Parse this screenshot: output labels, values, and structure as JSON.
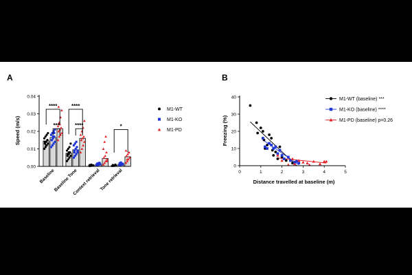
{
  "colors": {
    "wt": "#000000",
    "ko": "#1f37d6",
    "pd": "#e32127",
    "bar_fill": "#d9d9d9",
    "bar_stroke": "#000000",
    "axis": "#000000"
  },
  "chart_data": [
    {
      "type": "bar",
      "panel_label": "A",
      "ylabel": "Speed (m/s)",
      "ylim": [
        0,
        0.04
      ],
      "yticks": [
        0.0,
        0.01,
        0.02,
        0.03,
        0.04
      ],
      "ytick_labels": [
        "0.00",
        "0.01",
        "0.02",
        "0.03",
        "0.04"
      ],
      "categories": [
        "Baseline",
        "Baseline Tone",
        "Context retrieval",
        "Tone retrieval"
      ],
      "legend": [
        "M1-WT",
        "M1-KO",
        "M1-PD"
      ],
      "series": [
        {
          "name": "M1-WT",
          "values": [
            0.0145,
            0.0075,
            0.0005,
            0.0005
          ],
          "points": [
            [
              0.01,
              0.011,
              0.012,
              0.013,
              0.014,
              0.014,
              0.015,
              0.016,
              0.017,
              0.018,
              0.019,
              0.013,
              0.012,
              0.015
            ],
            [
              0.003,
              0.004,
              0.005,
              0.006,
              0.007,
              0.008,
              0.008,
              0.009,
              0.01,
              0.011,
              0.013,
              0.006,
              0.007
            ],
            [
              0.0002,
              0.0003,
              0.0005,
              0.0006,
              0.0008,
              0.001,
              0.0004,
              0.0007
            ],
            [
              0.0002,
              0.0004,
              0.0005,
              0.0006,
              0.0008,
              0.0003,
              0.001
            ]
          ]
        },
        {
          "name": "M1-KO",
          "values": [
            0.0165,
            0.0095,
            0.0012,
            0.0013
          ],
          "points": [
            [
              0.011,
              0.012,
              0.013,
              0.014,
              0.015,
              0.016,
              0.017,
              0.018,
              0.019,
              0.02,
              0.021,
              0.015,
              0.017,
              0.019
            ],
            [
              0.005,
              0.006,
              0.007,
              0.008,
              0.009,
              0.01,
              0.011,
              0.012,
              0.013,
              0.014,
              0.009,
              0.008
            ],
            [
              0.0005,
              0.0008,
              0.001,
              0.0012,
              0.0015,
              0.0018,
              0.002,
              0.0006
            ],
            [
              0.0005,
              0.0008,
              0.0012,
              0.0015,
              0.0018,
              0.0022,
              0.001
            ]
          ]
        },
        {
          "name": "M1-PD",
          "values": [
            0.0215,
            0.016,
            0.0045,
            0.0055
          ],
          "points": [
            [
              0.015,
              0.017,
              0.018,
              0.019,
              0.02,
              0.021,
              0.022,
              0.023,
              0.025,
              0.028,
              0.032,
              0.034,
              0.024
            ],
            [
              0.008,
              0.01,
              0.012,
              0.014,
              0.015,
              0.016,
              0.017,
              0.018,
              0.02,
              0.022,
              0.026
            ],
            [
              0.001,
              0.002,
              0.003,
              0.004,
              0.005,
              0.006,
              0.008,
              0.01,
              0.014,
              0.017,
              0.003
            ],
            [
              0.002,
              0.003,
              0.004,
              0.005,
              0.006,
              0.007,
              0.008,
              0.009,
              0.004
            ]
          ]
        }
      ],
      "significance": [
        {
          "category": 0,
          "from": "M1-WT",
          "to": "M1-PD",
          "label": "****",
          "level": 0.0255
        },
        {
          "category": 0,
          "from": "M1-KO",
          "to": "M1-PD",
          "label": "***",
          "level": 0.0215
        },
        {
          "category": 1,
          "from": "M1-WT",
          "to": "M1-PD",
          "label": "****",
          "level": 0.0255
        },
        {
          "category": 1,
          "from": "M1-KO",
          "to": "M1-PD",
          "label": "****",
          "level": 0.0215
        },
        {
          "category": 3,
          "from": "M1-WT",
          "to": "M1-PD",
          "label": "*",
          "level": 0.021
        }
      ]
    },
    {
      "type": "scatter",
      "panel_label": "B",
      "xlabel": "Distance travelled at baseline (m)",
      "ylabel": "Freezing   (%)",
      "xlim": [
        0,
        5
      ],
      "ylim": [
        0,
        40
      ],
      "xticks": [
        0,
        1,
        2,
        3,
        4,
        5
      ],
      "yticks": [
        0,
        10,
        20,
        30,
        40
      ],
      "series": [
        {
          "name": "M1-WT",
          "legend": "M1-WT (baseline) ***",
          "points": [
            [
              0.5,
              35
            ],
            [
              0.8,
              25
            ],
            [
              0.85,
              19
            ],
            [
              1.0,
              22
            ],
            [
              1.1,
              20
            ],
            [
              1.15,
              15
            ],
            [
              1.2,
              10
            ],
            [
              1.3,
              12
            ],
            [
              1.4,
              18
            ],
            [
              1.5,
              16
            ],
            [
              1.55,
              9
            ],
            [
              1.6,
              6
            ],
            [
              1.7,
              8
            ],
            [
              1.8,
              4
            ],
            [
              1.9,
              11
            ],
            [
              2.0,
              5
            ],
            [
              2.2,
              3
            ],
            [
              2.5,
              1.5
            ],
            [
              2.6,
              2
            ]
          ],
          "fit": [
            [
              0.5,
              25.5
            ],
            [
              2.7,
              0
            ]
          ]
        },
        {
          "name": "M1-KO",
          "legend": "M1-KO (baseline) ****",
          "points": [
            [
              1.1,
              16
            ],
            [
              1.2,
              11
            ],
            [
              1.3,
              10
            ],
            [
              1.4,
              13
            ],
            [
              1.5,
              12
            ],
            [
              1.6,
              10
            ],
            [
              1.7,
              11
            ],
            [
              1.8,
              7
            ],
            [
              1.9,
              9
            ],
            [
              2.0,
              6
            ],
            [
              2.1,
              4
            ],
            [
              2.3,
              5
            ],
            [
              2.4,
              3
            ],
            [
              2.6,
              2
            ],
            [
              2.7,
              2.5
            ],
            [
              2.8,
              1.5
            ]
          ],
          "fit": [
            [
              1.1,
              15
            ],
            [
              2.8,
              0.5
            ]
          ]
        },
        {
          "name": "M1-PD",
          "legend": "M1-PD (baseline) p=0.26",
          "points": [
            [
              1.8,
              6
            ],
            [
              2.0,
              3
            ],
            [
              2.3,
              0.5
            ],
            [
              2.5,
              4
            ],
            [
              2.6,
              1
            ],
            [
              2.8,
              3
            ],
            [
              3.0,
              2
            ],
            [
              3.2,
              1.5
            ],
            [
              3.3,
              0.5
            ],
            [
              3.5,
              2.5
            ],
            [
              3.8,
              1
            ],
            [
              4.0,
              2.5
            ],
            [
              4.1,
              2.5
            ]
          ],
          "fit": [
            [
              1.8,
              4.5
            ],
            [
              4.1,
              1.5
            ]
          ]
        }
      ]
    }
  ]
}
